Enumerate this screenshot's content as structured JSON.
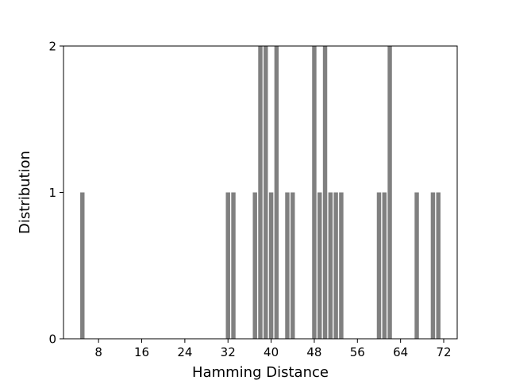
{
  "chart_data": {
    "type": "bar",
    "title": "",
    "xlabel": "Hamming Distance",
    "ylabel": "Distribution",
    "x": [
      5,
      32,
      33,
      37,
      38,
      39,
      40,
      41,
      43,
      44,
      48,
      49,
      50,
      51,
      52,
      53,
      60,
      61,
      62,
      67,
      70,
      71
    ],
    "values": [
      1,
      1,
      1,
      1,
      2,
      2,
      1,
      2,
      1,
      1,
      2,
      1,
      2,
      1,
      1,
      1,
      1,
      1,
      2,
      1,
      1,
      1
    ],
    "xlim": [
      1.5,
      74.5
    ],
    "ylim": [
      0,
      2
    ],
    "xticks": [
      8,
      16,
      24,
      32,
      40,
      48,
      56,
      64,
      72
    ],
    "xtick_labels": [
      "8",
      "16",
      "24",
      "32",
      "40",
      "48",
      "56",
      "64",
      "72"
    ],
    "yticks": [
      0,
      1,
      2
    ],
    "ytick_labels": [
      "0",
      "1",
      "2"
    ],
    "bar_color": "#808080",
    "grid": false,
    "legend": "none"
  }
}
